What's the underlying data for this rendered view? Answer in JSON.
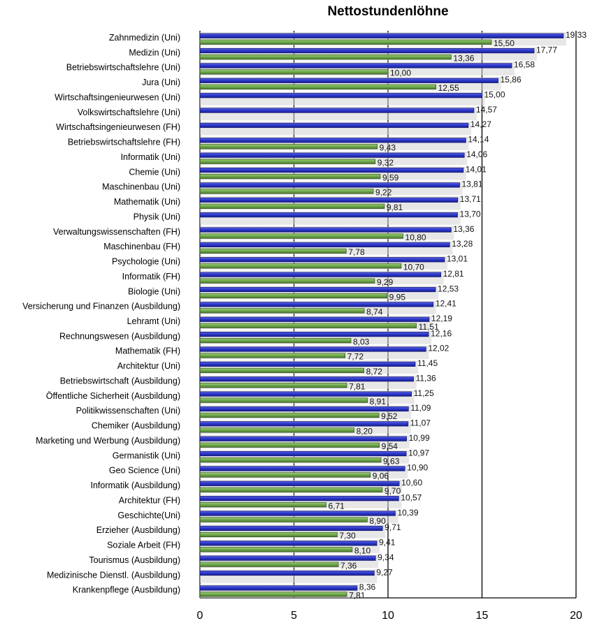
{
  "chart_data": {
    "type": "bar",
    "orientation": "horizontal",
    "title": "Nettostundenlöhne",
    "xlim": [
      0,
      20
    ],
    "xticks": [
      "0",
      "5",
      "10",
      "15",
      "20"
    ],
    "grid": true,
    "colors": {
      "series1": "#2a35c8",
      "series2": "#6fa64a"
    },
    "categories": [
      "Zahnmedizin (Uni)",
      "Medizin (Uni)",
      "Betriebswirtschaftslehre (Uni)",
      "Jura (Uni)",
      "Wirtschaftsingenieurwesen (Uni)",
      "Volkswirtschaftslehre (Uni)",
      "Wirtschaftsingenieurwesen (FH)",
      "Betriebswirtschaftslehre (FH)",
      "Informatik (Uni)",
      "Chemie (Uni)",
      "Maschinenbau (Uni)",
      "Mathematik (Uni)",
      "Physik (Uni)",
      "Verwaltungswissenschaften (FH)",
      "Maschinenbau (FH)",
      "Psychologie (Uni)",
      "Informatik (FH)",
      "Biologie (Uni)",
      "Versicherung und Finanzen (Ausbildung)",
      "Lehramt (Uni)",
      "Rechnungswesen (Ausbildung)",
      "Mathematik (FH)",
      "Architektur (Uni)",
      "Betriebswirtschaft (Ausbildung)",
      "Öffentliche Sicherheit (Ausbildung)",
      "Politikwissenschaften (Uni)",
      "Chemiker (Ausbildung)",
      "Marketing und Werbung (Ausbildung)",
      "Germanistik (Uni)",
      "Geo Science (Uni)",
      "Informatik (Ausbildung)",
      "Architektur (FH)",
      "Geschichte(Uni)",
      "Erzieher (Ausbildung)",
      "Soziale Arbeit (FH)",
      "Tourismus (Ausbildung)",
      "Medizinische Dienstl. (Ausbildung)",
      "Krankenpflege (Ausbildung)"
    ],
    "series": [
      {
        "values": [
          19.33,
          17.77,
          16.58,
          15.86,
          15.0,
          14.57,
          14.27,
          14.14,
          14.06,
          14.01,
          13.81,
          13.71,
          13.7,
          13.36,
          13.28,
          13.01,
          12.81,
          12.53,
          12.41,
          12.19,
          12.16,
          12.02,
          11.45,
          11.36,
          11.25,
          11.09,
          11.07,
          10.99,
          10.97,
          10.9,
          10.6,
          10.57,
          10.39,
          9.71,
          9.41,
          9.34,
          9.27,
          8.36
        ],
        "labels": [
          "19,33",
          "17,77",
          "16,58",
          "15,86",
          "15,00",
          "14,57",
          "14,27",
          "14,14",
          "14,06",
          "14,01",
          "13,81",
          "13,71",
          "13,70",
          "13,36",
          "13,28",
          "13,01",
          "12,81",
          "12,53",
          "12,41",
          "12,19",
          "12,16",
          "12,02",
          "11,45",
          "11,36",
          "11,25",
          "11,09",
          "11,07",
          "10,99",
          "10,97",
          "10,90",
          "10,60",
          "10,57",
          "10,39",
          "9,71",
          "9,41",
          "9,34",
          "9,27",
          "8,36"
        ]
      },
      {
        "values": [
          15.5,
          13.36,
          10.0,
          12.55,
          null,
          null,
          null,
          9.43,
          9.32,
          9.59,
          9.22,
          9.81,
          null,
          10.8,
          7.78,
          10.7,
          9.29,
          9.95,
          8.74,
          11.51,
          8.03,
          7.72,
          8.72,
          7.81,
          8.91,
          9.52,
          8.2,
          9.54,
          9.63,
          9.06,
          9.7,
          6.71,
          8.9,
          7.3,
          8.1,
          7.36,
          null,
          7.81
        ],
        "labels": [
          "15,50",
          "13,36",
          "10,00",
          "12,55",
          null,
          null,
          null,
          "9,43",
          "9,32",
          "9,59",
          "9,22",
          "9,81",
          null,
          "10,80",
          "7,78",
          "10,70",
          "9,29",
          "9,95",
          "8,74",
          "11,51",
          "8,03",
          "7,72",
          "8,72",
          "7,81",
          "8,91",
          "9,52",
          "8,20",
          "9,54",
          "9,63",
          "9,06",
          "9,70",
          "6,71",
          "8,90",
          "7,30",
          "8,10",
          "7,36",
          null,
          "7,81"
        ]
      }
    ]
  }
}
